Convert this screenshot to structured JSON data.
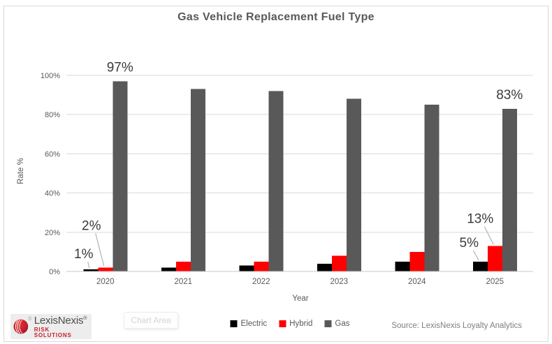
{
  "window": {
    "background": "#ffffff",
    "border_color": "#d9d9d9"
  },
  "chart_data": {
    "type": "bar",
    "title": "Gas Vehicle Replacement Fuel Type",
    "xlabel": "Year",
    "ylabel": "Rate %",
    "categories": [
      "2020",
      "2021",
      "2022",
      "2023",
      "2024",
      "2025"
    ],
    "series": [
      {
        "name": "Electric",
        "color": "#000000",
        "values": [
          1,
          2,
          3,
          4,
          5,
          5
        ]
      },
      {
        "name": "Hybrid",
        "color": "#ff0000",
        "values": [
          2,
          5,
          5,
          8,
          10,
          13
        ]
      },
      {
        "name": "Gas",
        "color": "#595959",
        "values": [
          97,
          93,
          92,
          88,
          85,
          83
        ]
      }
    ],
    "ylim": [
      0,
      100
    ],
    "ytick_step": 20,
    "yticks": [
      "0%",
      "20%",
      "40%",
      "60%",
      "80%",
      "100%"
    ],
    "grid": true,
    "gridline_color": "#d9d9d9",
    "legend_position": "bottom",
    "annotations": [
      {
        "category": "2020",
        "series": "Electric",
        "text": "1%",
        "leader": true
      },
      {
        "category": "2020",
        "series": "Hybrid",
        "text": "2%",
        "leader": true
      },
      {
        "category": "2020",
        "series": "Gas",
        "text": "97%",
        "leader": false
      },
      {
        "category": "2025",
        "series": "Electric",
        "text": "5%",
        "leader": true
      },
      {
        "category": "2025",
        "series": "Hybrid",
        "text": "13%",
        "leader": true
      },
      {
        "category": "2025",
        "series": "Gas",
        "text": "83%",
        "leader": false
      }
    ]
  },
  "footer": {
    "logo": {
      "brand": "LexisNexis",
      "registered": "®",
      "subtitle": "RISK SOLUTIONS"
    },
    "tooltip": "Chart Area",
    "source": "Source: LexisNexis Loyalty Analytics"
  },
  "colors": {
    "electric_black": "#000000",
    "hybrid_red": "#ff0000",
    "gas_gray": "#595959",
    "logo_red": "#c8202f",
    "annotation_text": "#3a3a3a",
    "axis_text": "#595959"
  }
}
